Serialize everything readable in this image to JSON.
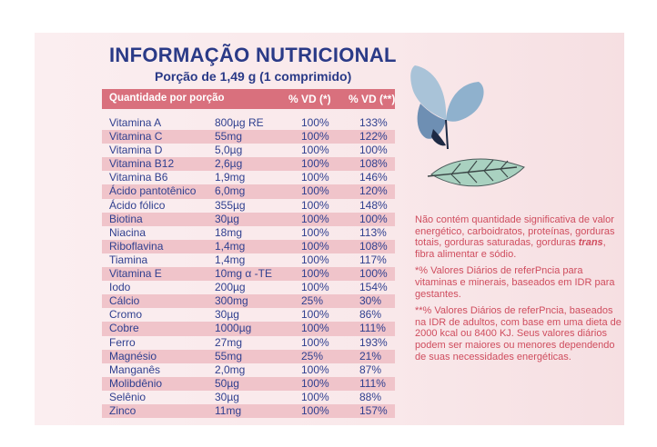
{
  "title": "INFORMAÇÃO NUTRICIONAL",
  "subtitle": "Porção de 1,49 g (1 comprimido)",
  "table": {
    "headers": [
      "Quantidade por porção",
      "% VD (*)",
      "% VD (**)"
    ],
    "rows": [
      {
        "name": "Vitamina A",
        "amount": "800µg RE",
        "vd1": "100%",
        "vd2": "133%"
      },
      {
        "name": "Vitamina C",
        "amount": "55mg",
        "vd1": "100%",
        "vd2": "122%"
      },
      {
        "name": "Vitamina D",
        "amount": "5,0µg",
        "vd1": "100%",
        "vd2": "100%"
      },
      {
        "name": "Vitamina B12",
        "amount": "2,6µg",
        "vd1": "100%",
        "vd2": "108%"
      },
      {
        "name": "Vitamina B6",
        "amount": "1,9mg",
        "vd1": "100%",
        "vd2": "146%"
      },
      {
        "name": "Ácido pantotênico",
        "amount": "6,0mg",
        "vd1": "100%",
        "vd2": "120%"
      },
      {
        "name": "Ácido fólico",
        "amount": "355µg",
        "vd1": "100%",
        "vd2": "148%"
      },
      {
        "name": "Biotina",
        "amount": "30µg",
        "vd1": "100%",
        "vd2": "100%"
      },
      {
        "name": "Niacina",
        "amount": "18mg",
        "vd1": "100%",
        "vd2": "113%"
      },
      {
        "name": "Riboflavina",
        "amount": "1,4mg",
        "vd1": "100%",
        "vd2": "108%"
      },
      {
        "name": "Tiamina",
        "amount": "1,4mg",
        "vd1": "100%",
        "vd2": "117%"
      },
      {
        "name": "Vitamina E",
        "amount": "10mg α -TE",
        "vd1": "100%",
        "vd2": "100%"
      },
      {
        "name": "Iodo",
        "amount": "200µg",
        "vd1": "100%",
        "vd2": "154%"
      },
      {
        "name": "Cálcio",
        "amount": "300mg",
        "vd1": "25%",
        "vd2": "30%"
      },
      {
        "name": "Cromo",
        "amount": "30µg",
        "vd1": "100%",
        "vd2": "86%"
      },
      {
        "name": "Cobre",
        "amount": "1000µg",
        "vd1": "100%",
        "vd2": "111%"
      },
      {
        "name": "Ferro",
        "amount": "27mg",
        "vd1": "100%",
        "vd2": "193%"
      },
      {
        "name": "Magnésio",
        "amount": "55mg",
        "vd1": "25%",
        "vd2": "21%"
      },
      {
        "name": "Manganês",
        "amount": "2,0mg",
        "vd1": "100%",
        "vd2": "87%"
      },
      {
        "name": "Molibdênio",
        "amount": "50µg",
        "vd1": "100%",
        "vd2": "111%"
      },
      {
        "name": "Selênio",
        "amount": "30µg",
        "vd1": "100%",
        "vd2": "88%"
      },
      {
        "name": "Zinco",
        "amount": "11mg",
        "vd1": "100%",
        "vd2": "157%"
      }
    ]
  },
  "notes": {
    "p1_before": "Não contém quantidade significativa de valor energético, carboidratos, proteínas, gorduras totais, gorduras saturadas, gorduras ",
    "p1_emph": "trans",
    "p1_after": ", fibra alimentar e sódio.",
    "p2": "*% Valores Diários de referPncia para vitaminas e minerais, baseados em IDR para gestantes.",
    "p3": "**% Valores Diários de referPncia, baseados na IDR de adultos, com base em uma dieta de 2000 kcal ou 8400 KJ. Seus valores diários podem ser maiores ou menores dependendo de suas necessidades energéticas."
  },
  "colors": {
    "title": "#2a3a87",
    "header_bg": "#d9707d",
    "row_alt": "#f0c4ca",
    "notes": "#cf4d5e",
    "panel": "#f9e8ea"
  },
  "icons": [
    "butterfly-icon",
    "leaf-icon"
  ]
}
